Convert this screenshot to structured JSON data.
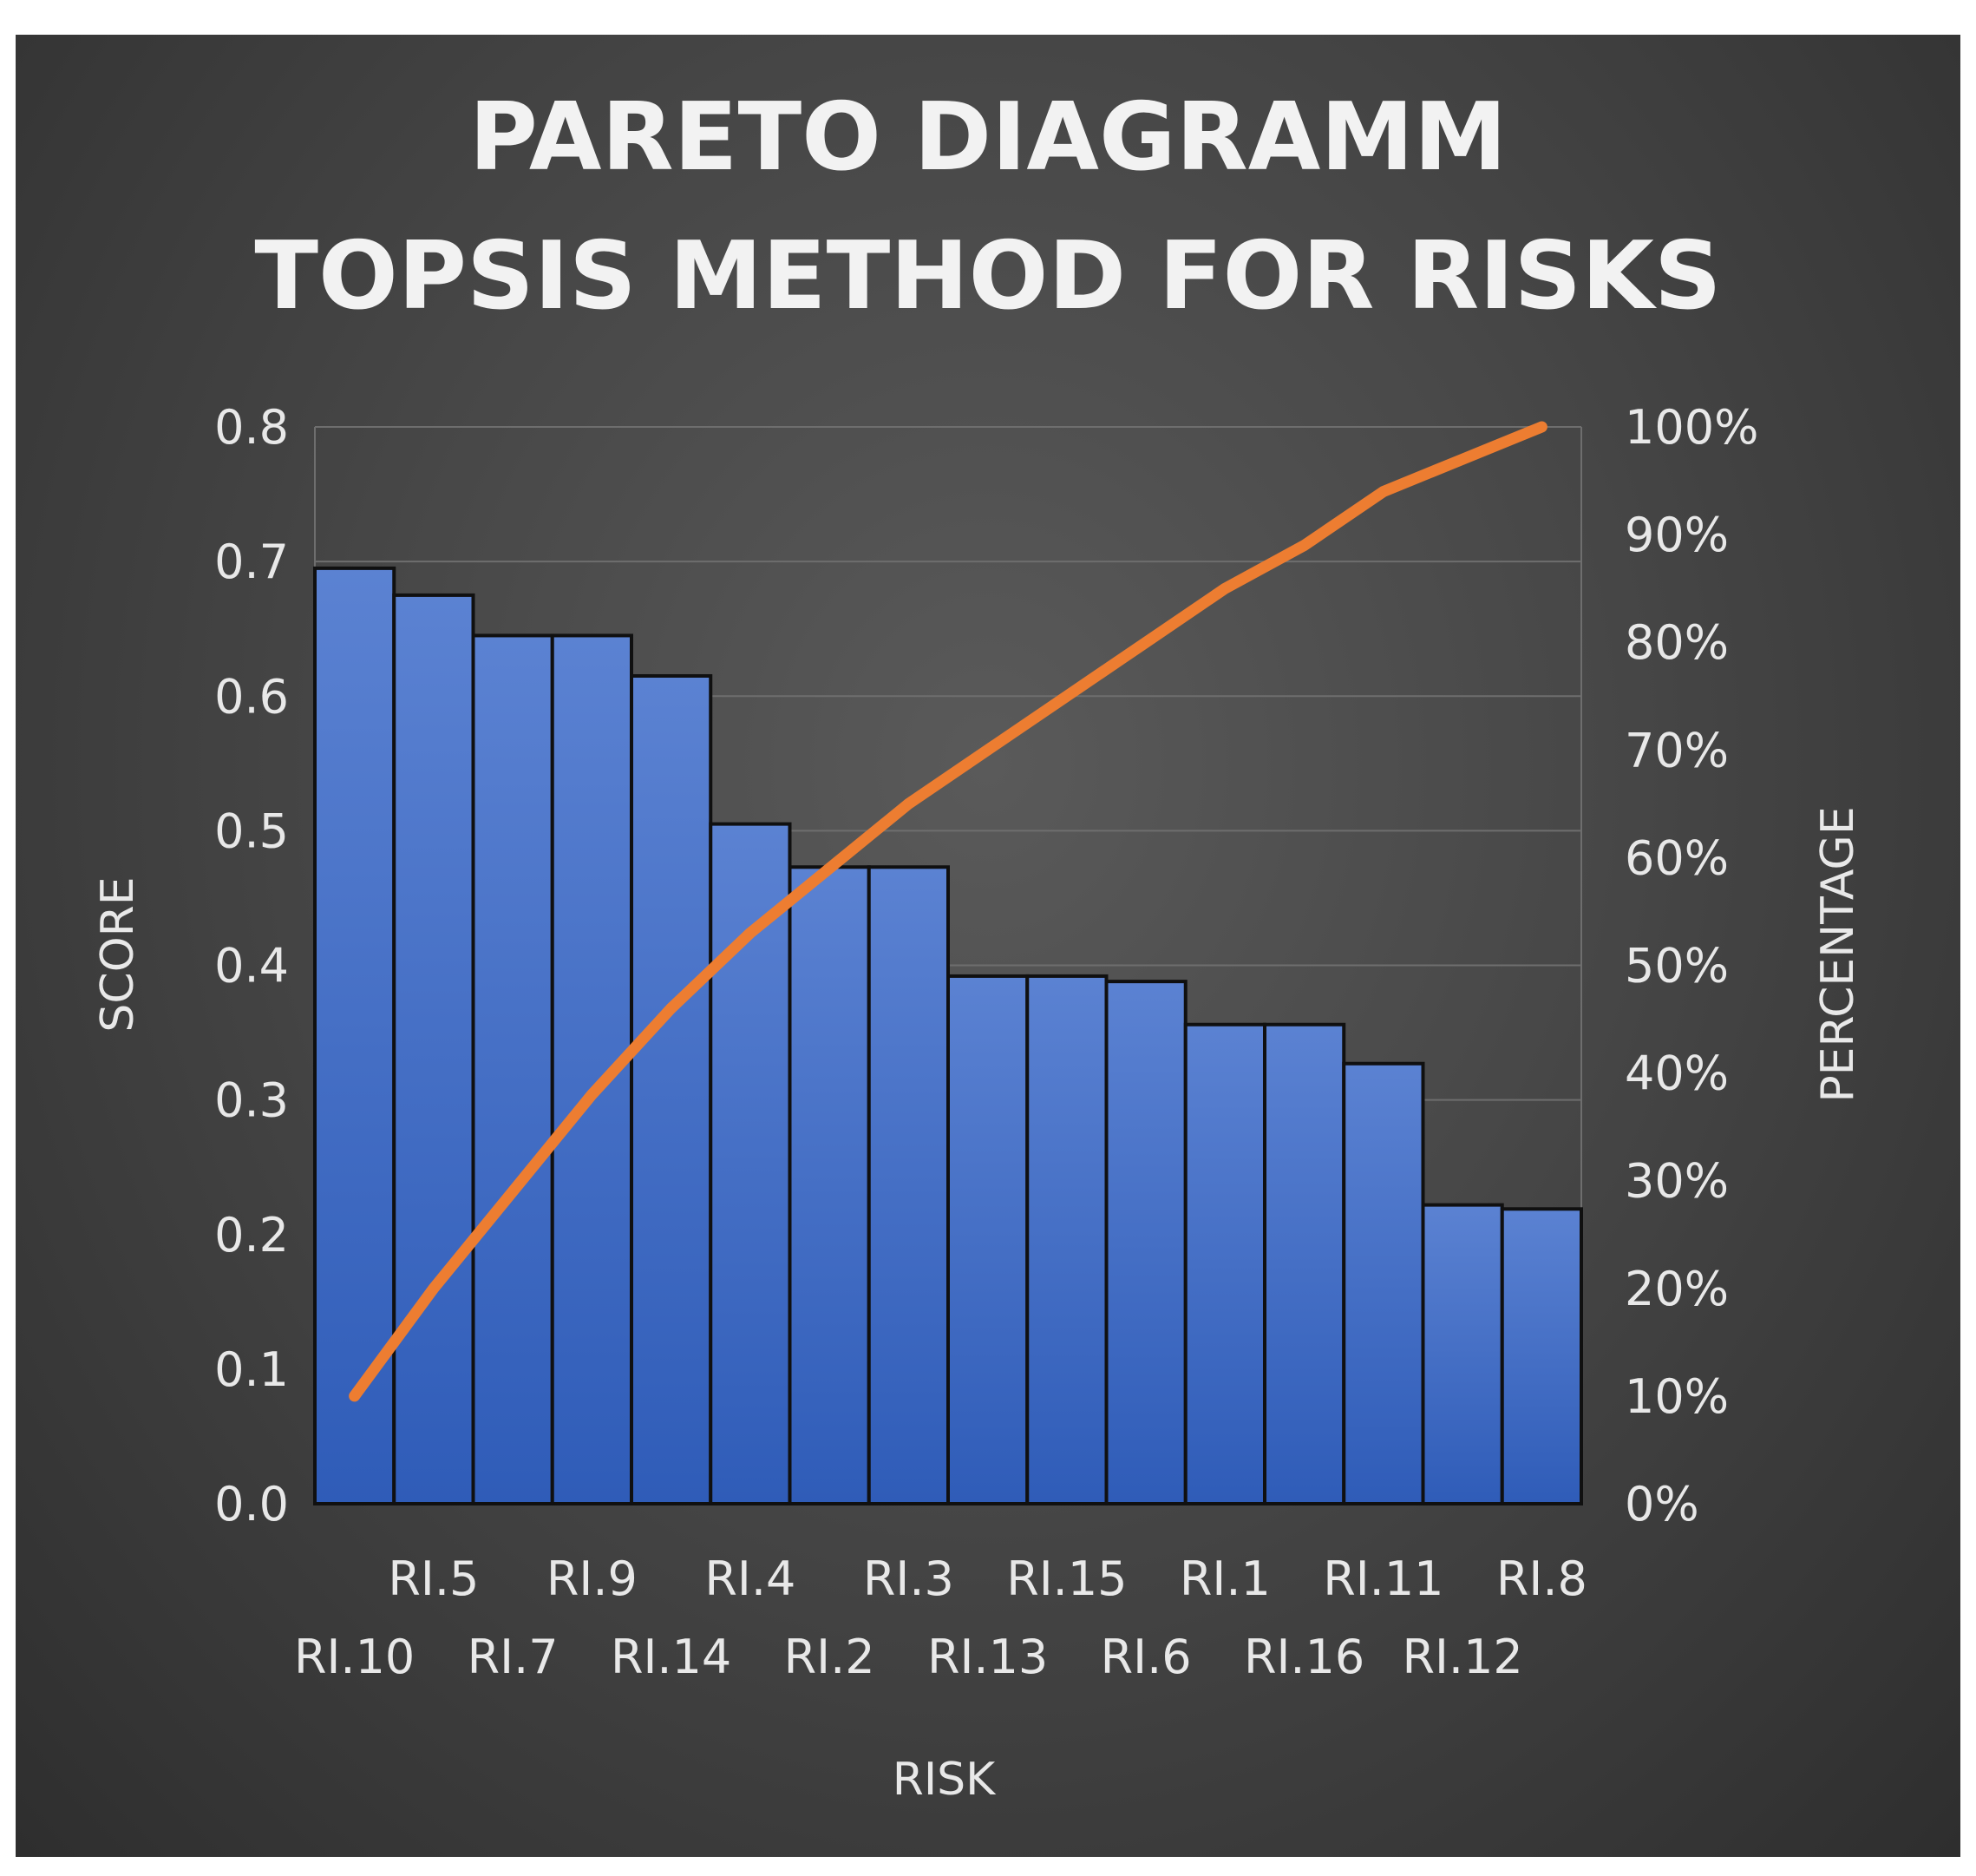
{
  "chart_data": {
    "type": "bar",
    "title": "PARETO DIAGRAMM",
    "subtitle": "TOPSIS METHOD FOR RISKS",
    "xlabel": "RISK",
    "ylabel": "SCORE",
    "y2label": "PERCENTAGE",
    "categories": [
      "RI.10",
      "RI.5",
      "RI.7",
      "RI.9",
      "RI.14",
      "RI.4",
      "RI.2",
      "RI.3",
      "RI.13",
      "RI.15",
      "RI.6",
      "RI.1",
      "RI.16",
      "RI.11",
      "RI.12",
      "RI.8"
    ],
    "series": [
      {
        "type": "bar",
        "axis": "left",
        "color": "#4472c4",
        "values": [
          0.695,
          0.675,
          0.645,
          0.645,
          0.615,
          0.505,
          0.473,
          0.473,
          0.392,
          0.392,
          0.388,
          0.356,
          0.356,
          0.327,
          0.222,
          0.219
        ]
      },
      {
        "type": "line",
        "axis": "right",
        "color": "#ed7d31",
        "values": [
          0.1,
          0.2,
          0.29,
          0.38,
          0.46,
          0.53,
          0.59,
          0.65,
          0.7,
          0.75,
          0.8,
          0.85,
          0.89,
          0.94,
          0.97,
          1.0
        ]
      }
    ],
    "ylim": [
      0,
      0.8
    ],
    "y_ticks": [
      "0.0",
      "0.1",
      "0.2",
      "0.3",
      "0.4",
      "0.5",
      "0.6",
      "0.7",
      "0.8"
    ],
    "y2lim": [
      0,
      1
    ],
    "y2_ticks": [
      "0%",
      "10%",
      "20%",
      "30%",
      "40%",
      "50%",
      "60%",
      "70%",
      "80%",
      "90%",
      "100%"
    ],
    "grid": true,
    "legend": "none"
  }
}
